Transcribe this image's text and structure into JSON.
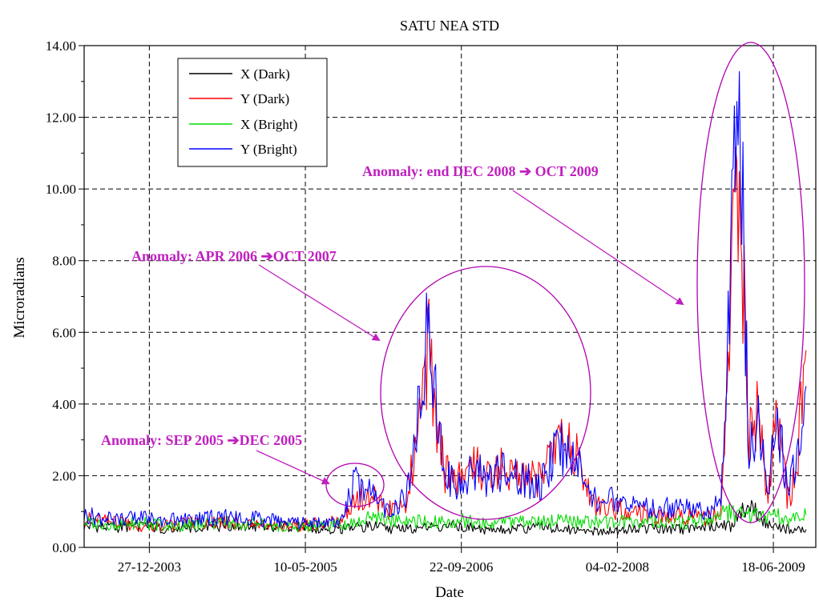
{
  "chart_data": {
    "type": "line",
    "title": "SATU NEA STD",
    "xlabel": "Date",
    "ylabel": "Microradians",
    "x_range": [
      "2003-06-01",
      "2009-11-01"
    ],
    "ylim": [
      0,
      14
    ],
    "x_ticks": [
      "2003-12-27",
      "2005-05-10",
      "2006-09-22",
      "2008-02-04",
      "2009-06-18"
    ],
    "x_tick_labels": [
      "27-12-2003",
      "10-05-2005",
      "22-09-2006",
      "04-02-2008",
      "18-06-2009"
    ],
    "y_ticks": [
      0,
      2,
      4,
      6,
      8,
      10,
      12,
      14
    ],
    "y_tick_labels": [
      "0.00",
      "2.00",
      "4.00",
      "6.00",
      "8.00",
      "10.00",
      "12.00",
      "14.00"
    ],
    "grid": true,
    "legend_position": "top-left",
    "series": [
      {
        "name": "X (Dark)",
        "color": "#000000",
        "x": [
          "2003-06-01",
          "2003-09-01",
          "2003-12-01",
          "2004-03-01",
          "2004-06-01",
          "2004-09-01",
          "2004-12-01",
          "2005-03-01",
          "2005-06-01",
          "2005-09-01",
          "2005-12-01",
          "2006-03-01",
          "2006-06-01",
          "2006-09-01",
          "2006-12-01",
          "2007-03-01",
          "2007-06-01",
          "2007-09-01",
          "2007-12-01",
          "2008-03-01",
          "2008-06-01",
          "2008-09-01",
          "2008-12-01",
          "2009-02-01",
          "2009-04-01",
          "2009-06-01",
          "2009-08-01",
          "2009-10-01"
        ],
        "y": [
          0.6,
          0.55,
          0.6,
          0.5,
          0.55,
          0.6,
          0.6,
          0.6,
          0.55,
          0.5,
          0.6,
          0.5,
          0.55,
          0.6,
          0.5,
          0.5,
          0.55,
          0.5,
          0.45,
          0.5,
          0.55,
          0.5,
          0.6,
          0.6,
          1.2,
          0.6,
          0.5,
          0.5
        ]
      },
      {
        "name": "Y (Dark)",
        "color": "#ff0000",
        "x": [
          "2003-06-01",
          "2003-09-01",
          "2003-12-01",
          "2004-03-01",
          "2004-06-01",
          "2004-09-01",
          "2004-12-01",
          "2005-03-01",
          "2005-06-01",
          "2005-09-01",
          "2005-10-15",
          "2005-12-01",
          "2006-02-01",
          "2006-04-01",
          "2006-05-10",
          "2006-06-10",
          "2006-07-10",
          "2006-08-01",
          "2006-09-15",
          "2006-11-01",
          "2006-12-15",
          "2007-02-01",
          "2007-04-01",
          "2007-06-01",
          "2007-08-01",
          "2007-10-01",
          "2007-11-15",
          "2008-01-01",
          "2008-03-01",
          "2008-06-01",
          "2008-09-01",
          "2008-11-15",
          "2009-01-01",
          "2009-02-01",
          "2009-03-01",
          "2009-04-01",
          "2009-05-01",
          "2009-06-01",
          "2009-07-01",
          "2009-08-01",
          "2009-09-01",
          "2009-10-01"
        ],
        "y": [
          0.8,
          0.7,
          0.6,
          0.6,
          0.7,
          0.7,
          0.6,
          0.6,
          0.65,
          0.7,
          1.3,
          1.5,
          1.0,
          1.3,
          3.5,
          5.8,
          3.0,
          2.1,
          1.9,
          2.3,
          2.0,
          2.2,
          2.0,
          1.9,
          3.0,
          2.5,
          1.2,
          1.1,
          1.0,
          0.9,
          0.9,
          0.8,
          1.1,
          7.0,
          10.5,
          3.0,
          3.8,
          1.3,
          4.0,
          1.2,
          2.2,
          5.5
        ]
      },
      {
        "name": "X (Bright)",
        "color": "#00dd00",
        "x": [
          "2003-06-01",
          "2003-09-01",
          "2003-12-01",
          "2004-03-01",
          "2004-06-01",
          "2004-09-01",
          "2004-12-01",
          "2005-03-01",
          "2005-06-01",
          "2005-09-01",
          "2005-12-01",
          "2006-03-01",
          "2006-06-01",
          "2006-09-01",
          "2006-12-01",
          "2007-03-01",
          "2007-06-01",
          "2007-09-01",
          "2007-12-01",
          "2008-03-01",
          "2008-06-01",
          "2008-09-01",
          "2008-12-01",
          "2009-02-01",
          "2009-04-01",
          "2009-06-01",
          "2009-08-01",
          "2009-10-01"
        ],
        "y": [
          0.7,
          0.65,
          0.7,
          0.6,
          0.65,
          0.7,
          0.65,
          0.6,
          0.6,
          0.65,
          0.8,
          0.75,
          0.7,
          0.75,
          0.7,
          0.75,
          0.7,
          0.75,
          0.7,
          0.7,
          0.75,
          0.7,
          0.8,
          1.0,
          0.9,
          0.9,
          0.8,
          0.9
        ]
      },
      {
        "name": "Y (Bright)",
        "color": "#0000ff",
        "x": [
          "2003-06-01",
          "2003-09-01",
          "2003-12-01",
          "2004-03-01",
          "2004-06-01",
          "2004-09-01",
          "2004-12-01",
          "2005-03-01",
          "2005-06-01",
          "2005-09-01",
          "2005-10-15",
          "2005-12-01",
          "2006-02-01",
          "2006-04-01",
          "2006-05-10",
          "2006-06-10",
          "2006-07-10",
          "2006-08-01",
          "2006-09-15",
          "2006-11-01",
          "2006-12-15",
          "2007-02-01",
          "2007-04-01",
          "2007-06-01",
          "2007-08-01",
          "2007-10-01",
          "2007-11-15",
          "2008-01-01",
          "2008-03-01",
          "2008-06-01",
          "2008-09-01",
          "2008-11-15",
          "2009-01-01",
          "2009-02-01",
          "2009-03-01",
          "2009-04-01",
          "2009-05-01",
          "2009-06-01",
          "2009-07-01",
          "2009-08-01",
          "2009-09-01",
          "2009-10-01"
        ],
        "y": [
          0.9,
          0.8,
          0.8,
          0.75,
          0.8,
          0.85,
          0.8,
          0.7,
          0.7,
          0.7,
          1.8,
          1.6,
          1.0,
          1.5,
          3.8,
          6.5,
          3.2,
          2.0,
          1.8,
          2.2,
          1.9,
          2.1,
          1.9,
          1.8,
          2.8,
          2.3,
          1.3,
          1.4,
          1.2,
          1.1,
          1.1,
          1.0,
          1.3,
          7.5,
          13.5,
          2.5,
          3.5,
          1.5,
          3.8,
          1.5,
          2.5,
          4.5
        ]
      }
    ],
    "annotations": [
      "Anomaly: SEP 2005 ➔DEC 2005",
      "Anomaly: APR 2006 ➔OCT 2007",
      "Anomaly: end DEC 2008 ➔ OCT 2009"
    ]
  }
}
